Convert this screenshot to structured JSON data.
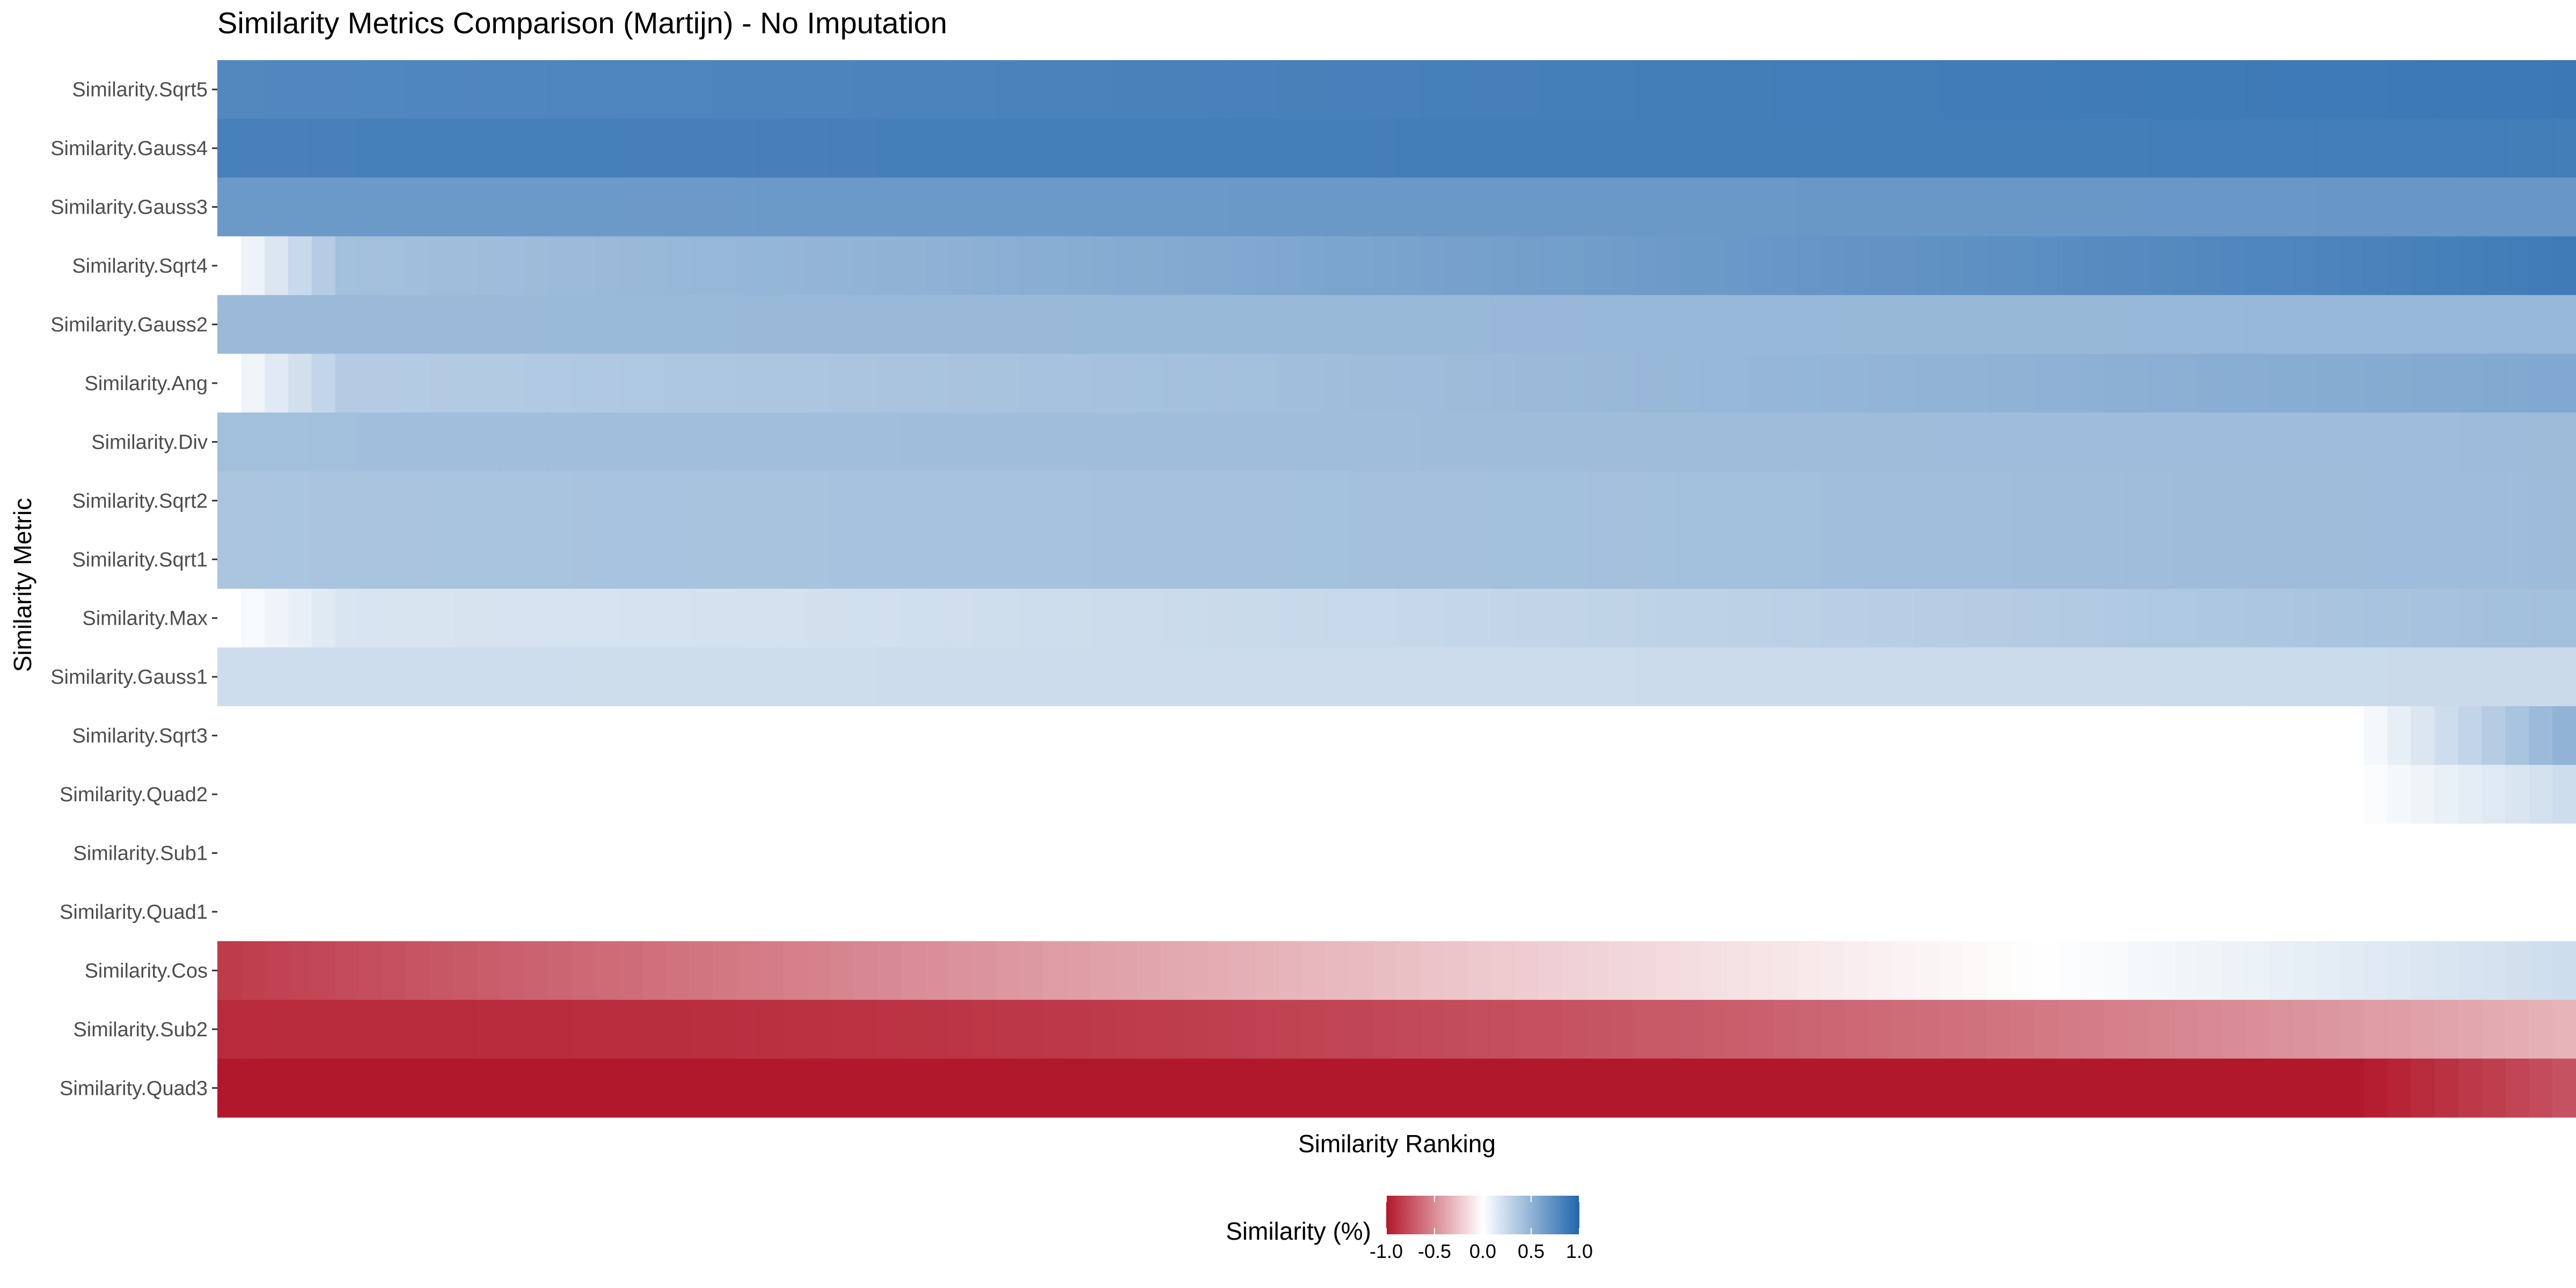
{
  "chart_data": {
    "type": "heatmap",
    "title": "Similarity Metrics Comparison (Martijn) - No Imputation",
    "xlabel": "Similarity Ranking",
    "ylabel": "Similarity Metric",
    "x_ticks_shown": false,
    "grid": false,
    "n_columns": 100,
    "color_scale": {
      "low": "#b2182b",
      "mid": "#ffffff",
      "high": "#2166ac",
      "limits": [
        -1,
        1
      ]
    },
    "legend": {
      "title": "Similarity (%)",
      "position": "bottom",
      "ticks": [
        -1.0,
        -0.5,
        0.0,
        0.5,
        1.0
      ],
      "tick_labels": [
        "-1.0",
        "-0.5",
        "0.0",
        "0.5",
        "1.0"
      ]
    },
    "rows": [
      {
        "label": "Similarity.Sqrt5",
        "start": 0.78,
        "end": 0.88,
        "ramp": 0.0,
        "curve": 1.0
      },
      {
        "label": "Similarity.Gauss4",
        "start": 0.83,
        "end": 0.85,
        "ramp": 0.0,
        "curve": 1.0
      },
      {
        "label": "Similarity.Gauss3",
        "start": 0.66,
        "end": 0.68,
        "ramp": 0.0,
        "curve": 1.0
      },
      {
        "label": "Similarity.Sqrt4",
        "start": 0.4,
        "end": 0.86,
        "ramp": 0.05,
        "curve": 1.2
      },
      {
        "label": "Similarity.Gauss2",
        "start": 0.45,
        "end": 0.47,
        "ramp": 0.0,
        "curve": 1.0
      },
      {
        "label": "Similarity.Ang",
        "start": 0.33,
        "end": 0.57,
        "ramp": 0.05,
        "curve": 1.2
      },
      {
        "label": "Similarity.Div",
        "start": 0.42,
        "end": 0.44,
        "ramp": 0.0,
        "curve": 1.0
      },
      {
        "label": "Similarity.Sqrt2",
        "start": 0.38,
        "end": 0.44,
        "ramp": 0.0,
        "curve": 1.0
      },
      {
        "label": "Similarity.Sqrt1",
        "start": 0.38,
        "end": 0.44,
        "ramp": 0.0,
        "curve": 1.0
      },
      {
        "label": "Similarity.Max",
        "start": 0.17,
        "end": 0.42,
        "ramp": 0.05,
        "curve": 1.5
      },
      {
        "label": "Similarity.Gauss1",
        "start": 0.22,
        "end": 0.24,
        "ramp": 0.0,
        "curve": 1.0
      },
      {
        "label": "Similarity.Sqrt3",
        "start": 0.0,
        "end": 0.5,
        "ramp": 0.0,
        "curve": 1.0,
        "onset": 0.91
      },
      {
        "label": "Similarity.Quad2",
        "start": 0.0,
        "end": 0.22,
        "ramp": 0.0,
        "curve": 1.0,
        "onset": 0.91
      },
      {
        "label": "Similarity.Sub1",
        "start": 0.0,
        "end": 0.0,
        "ramp": 0.0,
        "curve": 1.0
      },
      {
        "label": "Similarity.Quad1",
        "start": 0.0,
        "end": 0.0,
        "ramp": 0.0,
        "curve": 1.0
      },
      {
        "label": "Similarity.Cos",
        "start": -0.85,
        "end": 0.22,
        "ramp": 0.0,
        "curve": 0.9
      },
      {
        "label": "Similarity.Sub2",
        "start": -0.92,
        "end": -0.33,
        "ramp": 0.0,
        "curve": 2.2
      },
      {
        "label": "Similarity.Quad3",
        "start": -1.0,
        "end": -0.75,
        "ramp": 0.0,
        "curve": 1.0,
        "onset": 0.91
      }
    ]
  }
}
